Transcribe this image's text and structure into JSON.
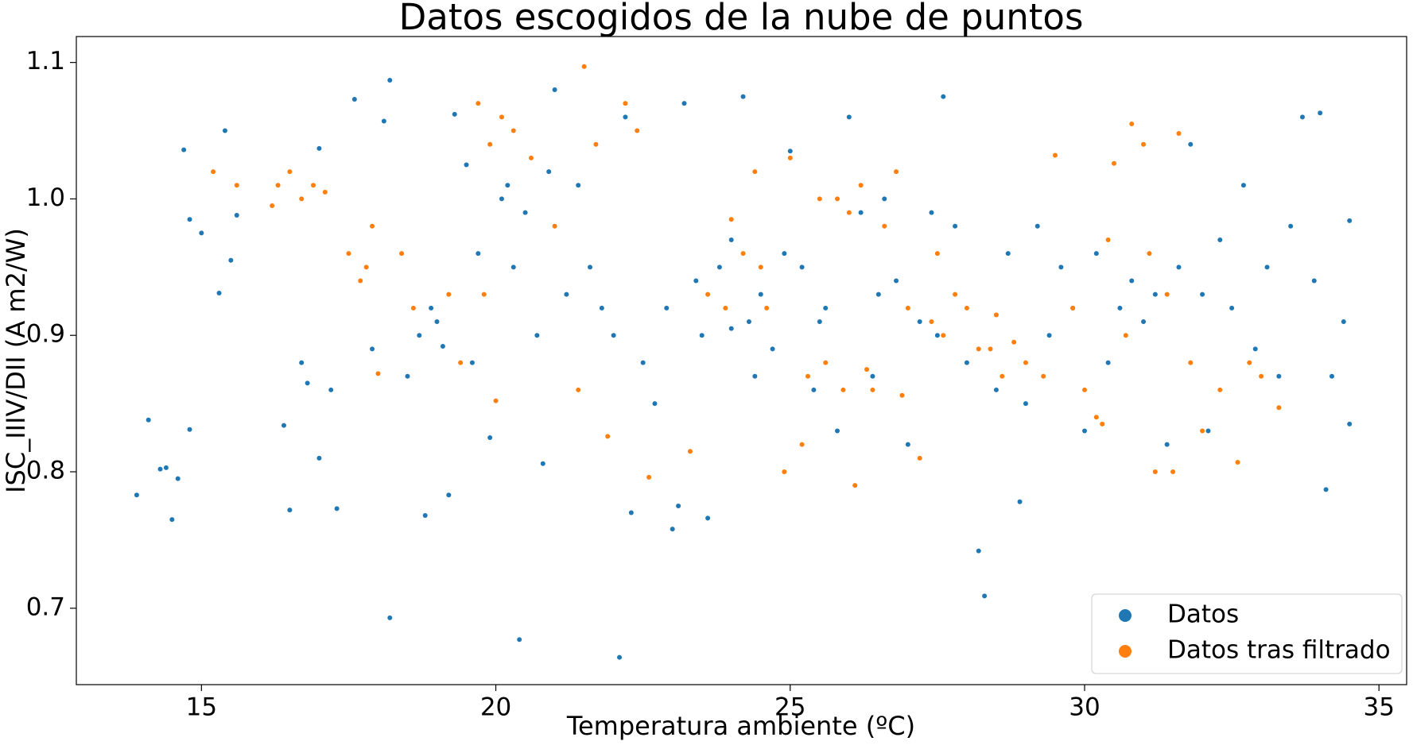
{
  "chart_data": {
    "type": "scatter",
    "title": "Datos escogidos de la nube de puntos",
    "xlabel": "Temperatura ambiente (ºC)",
    "ylabel": "ISC_IIIV/DII (A m2/W)",
    "xlim": [
      12.875,
      35.47
    ],
    "ylim": [
      0.644,
      1.119
    ],
    "xticks": [
      15,
      20,
      25,
      30,
      35
    ],
    "yticks": [
      0.7,
      0.8,
      0.9,
      {
        "value": 1.0,
        "label": "1.0"
      },
      1.1
    ],
    "grid": false,
    "legend": "lower right",
    "series": [
      {
        "name": "Datos",
        "color": "#1f77b4",
        "x": [
          13.9,
          14.1,
          14.3,
          14.4,
          14.5,
          14.6,
          14.7,
          14.8,
          14.8,
          15.0,
          15.3,
          15.4,
          15.5,
          15.6,
          16.4,
          16.5,
          16.7,
          16.8,
          17.0,
          17.0,
          17.2,
          17.3,
          17.6,
          17.9,
          18.1,
          18.2,
          18.2,
          18.5,
          18.7,
          18.8,
          18.9,
          19.0,
          19.1,
          19.2,
          19.3,
          19.5,
          19.6,
          19.7,
          19.9,
          20.1,
          20.2,
          20.3,
          20.4,
          20.5,
          20.7,
          20.8,
          20.9,
          21.0,
          21.2,
          21.4,
          21.6,
          21.8,
          22.0,
          22.1,
          22.2,
          22.3,
          22.5,
          22.7,
          22.9,
          23.0,
          23.1,
          23.2,
          23.4,
          23.5,
          23.6,
          23.8,
          24.0,
          24.2,
          24.3,
          24.5,
          24.7,
          24.9,
          25.0,
          25.2,
          25.4,
          25.6,
          25.8,
          26.0,
          26.2,
          26.4,
          26.6,
          26.8,
          27.0,
          27.2,
          27.4,
          27.6,
          27.8,
          28.0,
          28.2,
          28.3,
          28.5,
          28.7,
          28.9,
          29.0,
          29.2,
          29.4,
          29.6,
          29.8,
          30.0,
          30.2,
          30.4,
          30.6,
          30.8,
          31.0,
          31.2,
          31.4,
          31.6,
          31.8,
          32.0,
          32.1,
          32.3,
          32.5,
          32.7,
          32.9,
          33.1,
          33.3,
          33.5,
          33.7,
          33.9,
          34.0,
          34.1,
          34.2,
          34.4,
          34.5,
          34.5,
          25.5,
          24.0,
          24.4,
          26.5,
          27.5
        ],
        "values": [
          0.783,
          0.838,
          0.802,
          0.803,
          0.765,
          0.795,
          1.036,
          0.985,
          0.831,
          0.975,
          0.931,
          1.05,
          0.955,
          0.988,
          0.834,
          0.772,
          0.88,
          0.865,
          0.81,
          1.037,
          0.86,
          0.773,
          1.073,
          0.89,
          1.057,
          0.693,
          1.087,
          0.87,
          0.9,
          0.768,
          0.92,
          0.91,
          0.892,
          0.783,
          1.062,
          1.025,
          0.88,
          0.96,
          0.825,
          1.0,
          1.01,
          0.95,
          0.677,
          0.99,
          0.9,
          0.806,
          1.02,
          1.08,
          0.93,
          1.01,
          0.95,
          0.92,
          0.9,
          0.664,
          1.06,
          0.77,
          0.88,
          0.85,
          0.92,
          0.758,
          0.775,
          1.07,
          0.94,
          0.9,
          0.766,
          0.95,
          0.97,
          1.075,
          0.91,
          0.93,
          0.89,
          0.96,
          1.035,
          0.95,
          0.86,
          0.92,
          0.83,
          1.06,
          0.99,
          0.87,
          1.0,
          0.94,
          0.82,
          0.91,
          0.99,
          1.075,
          0.98,
          0.88,
          0.742,
          0.709,
          0.86,
          0.96,
          0.778,
          0.85,
          0.98,
          0.9,
          0.95,
          0.92,
          0.83,
          0.96,
          0.88,
          0.92,
          0.94,
          0.91,
          0.93,
          0.82,
          0.95,
          1.04,
          0.93,
          0.83,
          0.97,
          0.92,
          1.01,
          0.89,
          0.95,
          0.87,
          0.98,
          1.06,
          0.94,
          1.063,
          0.787,
          0.87,
          0.91,
          0.835,
          0.984,
          0.91,
          0.905,
          0.87,
          0.93,
          0.9
        ]
      },
      {
        "name": "Datos tras filtrado",
        "color": "#ff7f0e",
        "x": [
          15.2,
          15.6,
          16.2,
          16.3,
          16.5,
          16.7,
          16.9,
          17.1,
          17.5,
          17.7,
          17.8,
          17.9,
          18.0,
          18.4,
          18.6,
          19.2,
          19.4,
          19.7,
          19.8,
          19.9,
          20.0,
          20.1,
          20.3,
          20.6,
          21.0,
          21.4,
          21.5,
          21.7,
          21.9,
          22.2,
          22.4,
          22.6,
          23.3,
          23.6,
          23.9,
          24.0,
          24.2,
          24.4,
          24.6,
          24.9,
          25.0,
          25.3,
          25.5,
          25.6,
          25.8,
          25.9,
          26.0,
          26.1,
          26.2,
          26.4,
          26.6,
          26.8,
          26.9,
          27.0,
          27.2,
          27.4,
          27.6,
          27.8,
          28.0,
          28.2,
          28.4,
          28.6,
          28.8,
          29.0,
          29.3,
          29.5,
          29.8,
          30.0,
          30.2,
          30.3,
          30.4,
          30.5,
          30.7,
          30.8,
          31.0,
          31.1,
          31.2,
          31.4,
          31.5,
          31.6,
          31.8,
          32.0,
          32.3,
          32.6,
          32.8,
          33.0,
          33.3,
          25.2,
          24.5,
          26.3,
          27.5,
          28.5
        ],
        "values": [
          1.02,
          1.01,
          0.995,
          1.01,
          1.02,
          1.0,
          1.01,
          1.005,
          0.96,
          0.94,
          0.95,
          0.98,
          0.872,
          0.96,
          0.92,
          0.93,
          0.88,
          1.07,
          0.93,
          1.04,
          0.852,
          1.06,
          1.05,
          1.03,
          0.98,
          0.86,
          1.097,
          1.04,
          0.826,
          1.07,
          1.05,
          0.796,
          0.815,
          0.93,
          0.92,
          0.985,
          0.96,
          1.02,
          0.92,
          0.8,
          1.03,
          0.87,
          1.0,
          0.88,
          1.0,
          0.86,
          0.99,
          0.79,
          1.01,
          0.86,
          0.98,
          1.02,
          0.856,
          0.92,
          0.81,
          0.91,
          0.9,
          0.93,
          0.92,
          0.89,
          0.89,
          0.87,
          0.895,
          0.88,
          0.87,
          1.032,
          0.92,
          0.86,
          0.84,
          0.835,
          0.97,
          1.026,
          0.9,
          1.055,
          1.04,
          0.96,
          0.8,
          0.93,
          0.8,
          1.048,
          0.88,
          0.83,
          0.86,
          0.807,
          0.88,
          0.87,
          0.847,
          0.82,
          0.95,
          0.875,
          0.96,
          0.915
        ]
      }
    ]
  }
}
